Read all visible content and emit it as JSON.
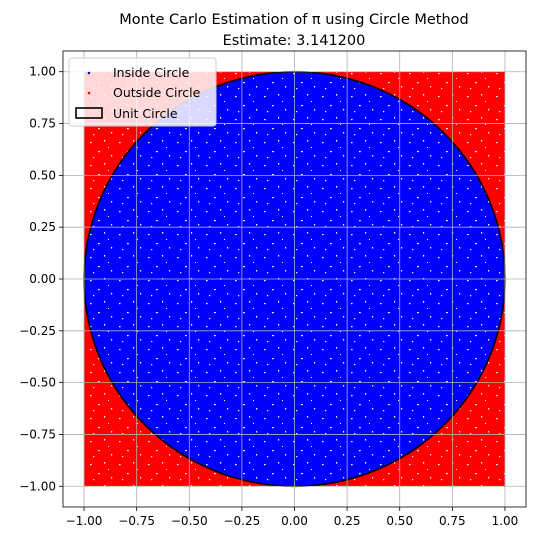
{
  "chart_data": {
    "type": "scatter",
    "title": "Monte Carlo Estimation of π using Circle Method",
    "subtitle": "Estimate: 3.141200",
    "xlabel": "",
    "ylabel": "",
    "xlim": [
      -1.1,
      1.1
    ],
    "ylim": [
      -1.1,
      1.1
    ],
    "grid": true,
    "legend_position": "top-left",
    "sampling_region": {
      "x": [
        -1.0,
        1.0
      ],
      "y": [
        -1.0,
        1.0
      ]
    },
    "xticks": [
      -1.0,
      -0.75,
      -0.5,
      -0.25,
      0.0,
      0.25,
      0.5,
      0.75,
      1.0
    ],
    "xtick_labels": [
      "−1.00",
      "−0.75",
      "−0.50",
      "−0.25",
      "0.00",
      "0.25",
      "0.50",
      "0.75",
      "1.00"
    ],
    "yticks": [
      1.0,
      0.75,
      0.5,
      0.25,
      0.0,
      -0.25,
      -0.5,
      -0.75,
      -1.0
    ],
    "ytick_labels": [
      "1.00",
      "0.75",
      "0.50",
      "0.25",
      "0.00",
      "−0.25",
      "−0.50",
      "−0.75",
      "−1.00"
    ],
    "series": [
      {
        "name": "Inside Circle",
        "kind": "points",
        "color": "#0000ff",
        "region": "x²+y² ≤ 1"
      },
      {
        "name": "Outside Circle",
        "kind": "points",
        "color": "#ff0000",
        "region": "x²+y² > 1"
      },
      {
        "name": "Unit Circle",
        "kind": "circle",
        "center": [
          0,
          0
        ],
        "radius": 1,
        "edgecolor": "#000000",
        "fill": "none"
      }
    ],
    "estimate": 3.1412
  },
  "colors": {
    "inside": "#0000ff",
    "outside": "#ff0000",
    "circle": "#000000",
    "grid": "#b0b0b0"
  }
}
